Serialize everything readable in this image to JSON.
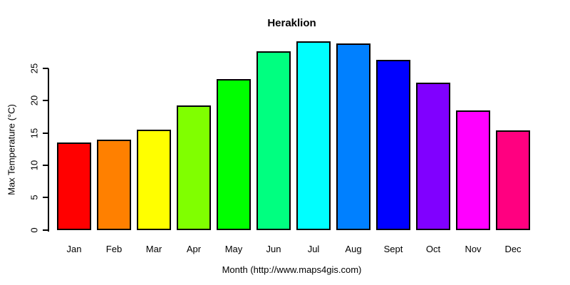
{
  "title": "Heraklion",
  "axes": {
    "y_title": "Max Temperature (°C)",
    "x_title": "Month (http://www.maps4gis.com)"
  },
  "chart_data": {
    "type": "bar",
    "title": "Heraklion",
    "xlabel": "Month (http://www.maps4gis.com)",
    "ylabel": "Max Temperature (°C)",
    "categories": [
      "Jan",
      "Feb",
      "Mar",
      "Apr",
      "May",
      "Jun",
      "Jul",
      "Aug",
      "Sept",
      "Oct",
      "Nov",
      "Dec"
    ],
    "values": [
      13.6,
      14.0,
      15.6,
      19.3,
      23.4,
      27.7,
      29.2,
      28.9,
      26.4,
      22.8,
      18.5,
      15.4
    ],
    "bar_colors": [
      "#FF0000",
      "#FF8000",
      "#FFFF00",
      "#80FF00",
      "#00FF00",
      "#00FF80",
      "#00FFFF",
      "#0080FF",
      "#0000FF",
      "#8000FF",
      "#FF00FF",
      "#FF0080"
    ],
    "bar_border_color": "#000000",
    "yticks": [
      0,
      5,
      10,
      15,
      20,
      25
    ],
    "ylim": [
      0,
      29.5
    ],
    "grid": false,
    "legend": "none"
  }
}
